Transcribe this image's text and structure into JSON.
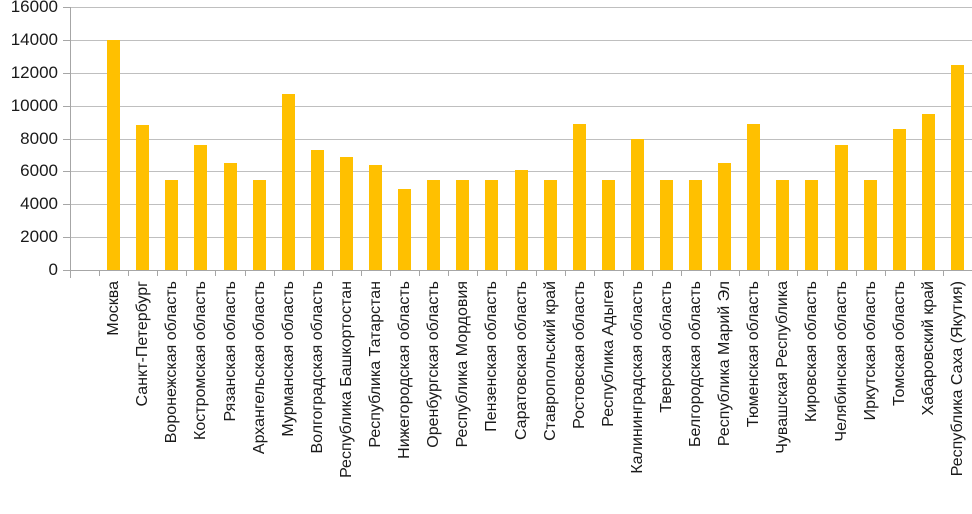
{
  "chart_data": {
    "type": "bar",
    "title": "",
    "xlabel": "",
    "ylabel": "",
    "categories": [
      "Москва",
      "Санкт-Петербург",
      "Воронежская область",
      "Костромская область",
      "Рязанская область",
      "Архангельская область",
      "Мурманская область",
      "Волгоградская область",
      "Республика Башкортостан",
      "Республика Татарстан",
      "Нижегородская область",
      "Оренбургская область",
      "Республика Мордовия",
      "Пензенская область",
      "Саратовская область",
      "Ставропольский край",
      "Ростовская область",
      "Республика Адыгея",
      "Калининградская область",
      "Тверская область",
      "Белгородская область",
      "Республика Марий Эл",
      "Тюменская область",
      "Чувашская Республика",
      "Кировская область",
      "Челябинская область",
      "Иркутская область",
      "Томская область",
      "Хабаровский край",
      "Республика Саха (Якутия)"
    ],
    "values": [
      14000,
      8800,
      5500,
      7600,
      6500,
      5500,
      10700,
      7300,
      6900,
      6400,
      4900,
      5500,
      5500,
      5500,
      6100,
      5500,
      8900,
      5500,
      8000,
      5500,
      5500,
      6500,
      8900,
      5500,
      5500,
      7600,
      5500,
      8600,
      9500,
      12500
    ],
    "ylim": [
      0,
      16000
    ],
    "yticks": [
      0,
      2000,
      4000,
      6000,
      8000,
      10000,
      12000,
      14000,
      16000
    ],
    "grid": true,
    "legend": false,
    "bar_color": "#FFC000",
    "layout": {
      "leading_empty_slots": 1
    }
  },
  "colors": {
    "bar": "#FFC000",
    "gridline": "#BFBFBF",
    "axis": "#A6A6A6",
    "text": "#1A1A1A",
    "background": "#FFFFFF"
  }
}
